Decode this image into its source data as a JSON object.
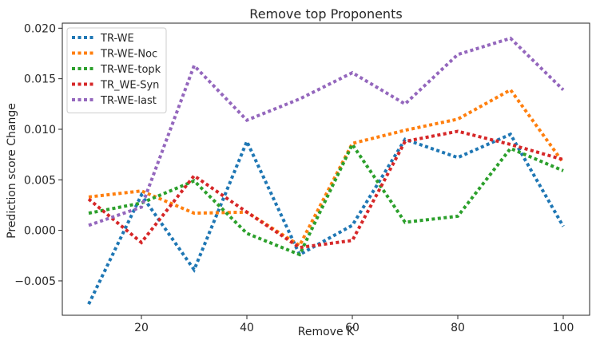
{
  "chart_data": {
    "type": "line",
    "title": "Remove top Proponents",
    "xlabel": "Remove K",
    "ylabel": "Prediction score Change",
    "x": [
      10,
      20,
      30,
      40,
      50,
      60,
      70,
      80,
      90,
      100
    ],
    "xlim": [
      5,
      105
    ],
    "ylim": [
      -0.0084,
      0.0205
    ],
    "xticks": [
      20,
      40,
      60,
      80,
      100
    ],
    "xtick_labels": [
      "20",
      "40",
      "60",
      "80",
      "100"
    ],
    "yticks": [
      -0.005,
      0.0,
      0.005,
      0.01,
      0.015,
      0.02
    ],
    "ytick_labels": [
      "−0.005",
      "0.000",
      "0.005",
      "0.010",
      "0.015",
      "0.020"
    ],
    "grid": false,
    "legend_position": "top-left",
    "line_style": "dotted",
    "series": [
      {
        "name": "TR-WE",
        "color": "#1f77b4",
        "values": [
          -0.0073,
          0.0035,
          -0.0039,
          0.0088,
          -0.0024,
          0.0005,
          0.009,
          0.0072,
          0.0095,
          0.0004
        ]
      },
      {
        "name": "TR-WE-Noc",
        "color": "#ff7f0e",
        "values": [
          0.0033,
          0.0039,
          0.0017,
          0.0018,
          -0.0015,
          0.0086,
          0.0099,
          0.011,
          0.0139,
          0.0067
        ]
      },
      {
        "name": "TR-WE-topk",
        "color": "#2ca02c",
        "values": [
          0.0017,
          0.0027,
          0.0049,
          -0.0003,
          -0.0024,
          0.0085,
          0.0008,
          0.0014,
          0.0081,
          0.0059
        ]
      },
      {
        "name": "TR_WE-Syn",
        "color": "#d62728",
        "values": [
          0.0031,
          -0.0012,
          0.0054,
          0.0018,
          -0.0017,
          -0.001,
          0.0088,
          0.0098,
          0.0085,
          0.007
        ]
      },
      {
        "name": "TR-WE-last",
        "color": "#9467bd",
        "values": [
          0.0005,
          0.0023,
          0.0163,
          0.0109,
          0.013,
          0.0156,
          0.0125,
          0.0174,
          0.019,
          0.0139
        ]
      }
    ]
  }
}
